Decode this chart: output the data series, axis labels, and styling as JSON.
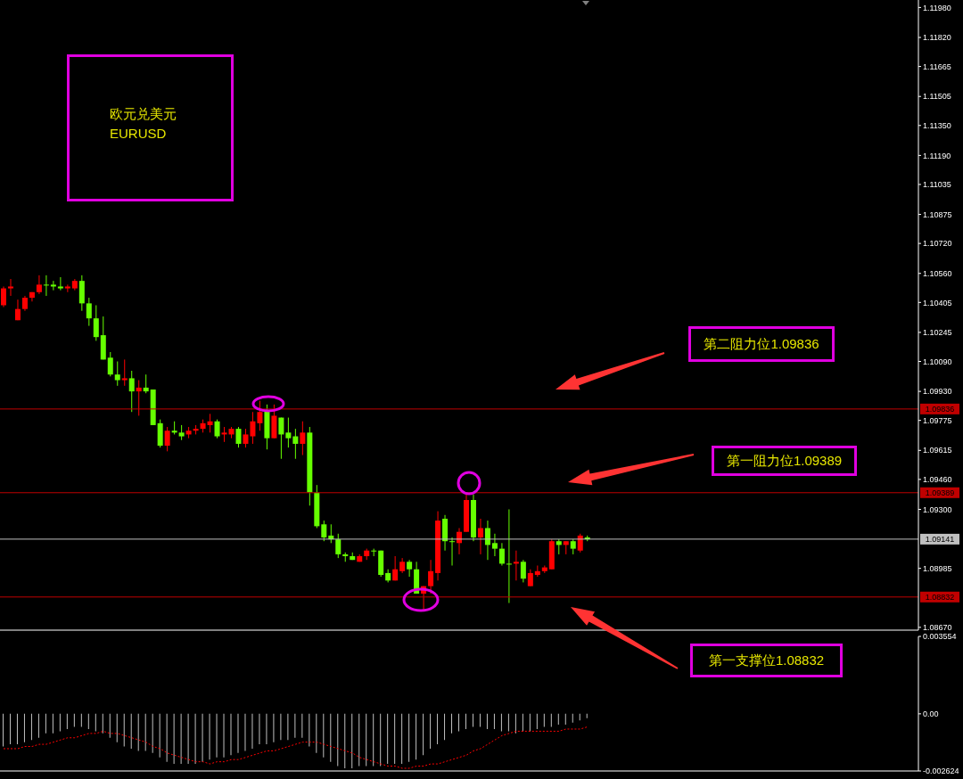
{
  "chart_data": [
    {
      "type": "candlestick",
      "categories": [
        null,
        null,
        null,
        null,
        null,
        null,
        null,
        null,
        null,
        null,
        null,
        null,
        null,
        null,
        null,
        null,
        null,
        null,
        null,
        null,
        null,
        null,
        null,
        null,
        null,
        null,
        null,
        null,
        null,
        null,
        null,
        null,
        null,
        null,
        null,
        null,
        null,
        null,
        null,
        null,
        null,
        null,
        null,
        null,
        null,
        null,
        null,
        null,
        null,
        null,
        null,
        null,
        null,
        null,
        null,
        null,
        null,
        null,
        null,
        null,
        null,
        null,
        null,
        null,
        null,
        null,
        null,
        null,
        null,
        null,
        null,
        null,
        null,
        null,
        null,
        null,
        null,
        null,
        null,
        null,
        null,
        null,
        null,
        null,
        null,
        null,
        null,
        null,
        null,
        null,
        null,
        null,
        null,
        null,
        null,
        null,
        null,
        null,
        null,
        null,
        null,
        null,
        null,
        null,
        null,
        null,
        null,
        null,
        null,
        null,
        null,
        null,
        null,
        null,
        null,
        null,
        null,
        null,
        null,
        null,
        null,
        null,
        null,
        null,
        null,
        null,
        null,
        null,
        null
      ],
      "ohlc": [
        [
          1.1039,
          1.1049,
          1.1038,
          1.1048
        ],
        [
          1.1048,
          1.1053,
          1.1044,
          1.1049
        ],
        [
          1.1031,
          1.1042,
          1.1031,
          1.1037
        ],
        [
          1.1037,
          1.1044,
          1.1036,
          1.1043
        ],
        [
          1.1043,
          1.1046,
          1.1041,
          1.1046
        ],
        [
          1.1046,
          1.1055,
          1.1045,
          1.105
        ],
        [
          1.105,
          1.1055,
          1.1044,
          1.105
        ],
        [
          1.105,
          1.1052,
          1.1047,
          1.1049
        ],
        [
          1.1049,
          1.1054,
          1.1047,
          1.1048
        ],
        [
          1.1048,
          1.105,
          1.1046,
          1.1049
        ],
        [
          1.1048,
          1.1053,
          1.1047,
          1.1052
        ],
        [
          1.1052,
          1.1055,
          1.1036,
          1.104
        ],
        [
          1.104,
          1.1043,
          1.1028,
          1.1032
        ],
        [
          1.1032,
          1.1039,
          1.102,
          1.1022
        ],
        [
          1.1023,
          1.1033,
          1.101,
          1.101
        ],
        [
          1.1011,
          1.1014,
          1.1001,
          1.1002
        ],
        [
          1.1002,
          1.1009,
          1.0996,
          1.0999
        ],
        [
          1.0999,
          1.101,
          1.0996,
          1.1
        ],
        [
          1.1,
          1.1004,
          1.0982,
          1.0993
        ],
        [
          1.0993,
          1.0999,
          1.098,
          1.0995
        ],
        [
          1.0995,
          1.1002,
          1.0992,
          1.0993
        ],
        [
          1.0994,
          1.0994,
          1.0975,
          1.0975
        ],
        [
          1.0976,
          1.0978,
          1.0963,
          1.0964
        ],
        [
          1.0964,
          1.0974,
          1.0961,
          1.0972
        ],
        [
          1.0972,
          1.0977,
          1.097,
          1.0971
        ],
        [
          1.0971,
          1.0975,
          1.0967,
          1.0969
        ],
        [
          1.097,
          1.0974,
          1.0968,
          1.0972
        ],
        [
          1.0972,
          1.0975,
          1.097,
          1.0973
        ],
        [
          1.0973,
          1.0978,
          1.0971,
          1.0976
        ],
        [
          1.0975,
          1.0981,
          1.0971,
          1.0977
        ],
        [
          1.0977,
          1.0978,
          1.0968,
          1.0969
        ],
        [
          1.097,
          1.0974,
          1.0966,
          1.0971
        ],
        [
          1.097,
          1.0974,
          1.0968,
          1.0973
        ],
        [
          1.0973,
          1.0974,
          1.0963,
          1.0965
        ],
        [
          1.0965,
          1.0973,
          1.0963,
          1.097
        ],
        [
          1.0969,
          1.0982,
          1.0965,
          1.0977
        ],
        [
          1.0976,
          1.0988,
          1.0972,
          1.0982
        ],
        [
          1.0983,
          1.0986,
          1.0962,
          1.0968
        ],
        [
          1.0968,
          1.0986,
          1.0968,
          1.098
        ],
        [
          1.0979,
          1.0979,
          1.0957,
          1.097
        ],
        [
          1.0971,
          1.0979,
          1.0963,
          1.0968
        ],
        [
          1.0969,
          1.0973,
          1.0957,
          1.0965
        ],
        [
          1.0965,
          1.0977,
          1.0959,
          1.0971
        ],
        [
          1.0971,
          1.0974,
          1.0932,
          1.0939
        ],
        [
          1.0939,
          1.0943,
          1.092,
          1.0921
        ],
        [
          1.0922,
          1.0924,
          1.0913,
          1.0915
        ],
        [
          1.0916,
          1.0922,
          1.0912,
          1.0914
        ],
        [
          1.0914,
          1.0917,
          1.0904,
          1.0906
        ],
        [
          1.0906,
          1.0907,
          1.0902,
          1.0905
        ],
        [
          1.0905,
          1.0907,
          1.0903,
          1.0903
        ],
        [
          1.0902,
          1.0906,
          1.0902,
          1.0905
        ],
        [
          1.0905,
          1.0909,
          1.0903,
          1.0908
        ],
        [
          1.0908,
          1.0909,
          1.0905,
          1.0908
        ],
        [
          1.0908,
          1.0908,
          1.0894,
          1.0895
        ],
        [
          1.0896,
          1.0898,
          1.0891,
          1.0892
        ],
        [
          1.0892,
          1.0905,
          1.0892,
          1.0898
        ],
        [
          1.0897,
          1.0904,
          1.0896,
          1.0902
        ],
        [
          1.0902,
          1.0903,
          1.0894,
          1.0898
        ],
        [
          1.0898,
          1.0902,
          1.0885,
          1.0885
        ],
        [
          1.0885,
          1.0889,
          1.0876,
          1.0889
        ],
        [
          1.0889,
          1.0903,
          1.0885,
          1.0897
        ],
        [
          1.0896,
          1.0929,
          1.0892,
          1.0924
        ],
        [
          1.0925,
          1.0927,
          1.0908,
          1.0913
        ],
        [
          1.0913,
          1.0915,
          1.09,
          1.0913
        ],
        [
          1.0912,
          1.092,
          1.0906,
          1.0918
        ],
        [
          1.0918,
          1.0939,
          1.0918,
          1.0935
        ],
        [
          1.0935,
          1.0938,
          1.0913,
          1.0915
        ],
        [
          1.0915,
          1.0925,
          1.0906,
          1.092
        ],
        [
          1.092,
          1.0924,
          1.0903,
          1.0911
        ],
        [
          1.0912,
          1.0917,
          1.0905,
          1.0909
        ],
        [
          1.0909,
          1.0912,
          1.09,
          1.0901
        ],
        [
          1.0901,
          1.093,
          1.088,
          1.0901
        ],
        [
          1.0901,
          1.0908,
          1.0892,
          1.0902
        ],
        [
          1.0902,
          1.0903,
          1.0891,
          1.0893
        ],
        [
          1.0889,
          1.0898,
          1.0889,
          1.0896
        ],
        [
          1.0895,
          1.09,
          1.0894,
          1.0897
        ],
        [
          1.0897,
          1.09,
          1.0896,
          1.0899
        ],
        [
          1.0898,
          1.0914,
          1.0898,
          1.0913
        ],
        [
          1.0913,
          1.0914,
          1.0906,
          1.0911
        ],
        [
          1.0911,
          1.0913,
          1.0906,
          1.0913
        ],
        [
          1.0913,
          1.0914,
          1.0906,
          1.0909
        ],
        [
          1.0908,
          1.0917,
          1.0907,
          1.0916
        ],
        [
          1.0915,
          1.0916,
          1.0913,
          1.0914
        ],
        null,
        null,
        null,
        null,
        null,
        null,
        null,
        null,
        null,
        null,
        null,
        null,
        null,
        null,
        null,
        null,
        null,
        null,
        null,
        null,
        null,
        null,
        null,
        null,
        null,
        null,
        null,
        null,
        null,
        null,
        null,
        null,
        null,
        null,
        null,
        null,
        null,
        null,
        null,
        null,
        null,
        null,
        null,
        null,
        null,
        null
      ],
      "colors": [
        "#ff0000",
        "#ff0000",
        "#ff0000",
        "#ff0000",
        "#ff0000",
        "#ff0000",
        "#66ff00",
        "#66ff00",
        "#66ff00",
        "#ff0000",
        "#ff0000",
        "#66ff00",
        "#66ff00",
        "#66ff00",
        "#66ff00",
        "#66ff00",
        "#66ff00",
        "#ff0000",
        "#66ff00",
        "#ff0000",
        "#66ff00",
        "#66ff00",
        "#66ff00",
        "#ff0000",
        "#66ff00",
        "#66ff00",
        "#ff0000",
        "#ff0000",
        "#ff0000",
        "#ff0000",
        "#66ff00",
        "#ff0000",
        "#ff0000",
        "#66ff00",
        "#ff0000",
        "#ff0000",
        "#ff0000",
        "#66ff00",
        "#ff0000",
        "#66ff00",
        "#66ff00",
        "#66ff00",
        "#ff0000",
        "#66ff00",
        "#66ff00",
        "#66ff00",
        "#66ff00",
        "#66ff00",
        "#66ff00",
        "#66ff00",
        "#ff0000",
        "#ff0000",
        "#66ff00",
        "#66ff00",
        "#66ff00",
        "#ff0000",
        "#ff0000",
        "#66ff00",
        "#66ff00",
        "#ff0000",
        "#ff0000",
        "#ff0000",
        "#66ff00",
        "#66ff00",
        "#ff0000",
        "#ff0000",
        "#66ff00",
        "#ff0000",
        "#66ff00",
        "#66ff00",
        "#66ff00",
        "#66ff00",
        "#ff0000",
        "#66ff00",
        "#ff0000",
        "#ff0000",
        "#ff0000",
        "#ff0000",
        "#66ff00",
        "#ff0000",
        "#66ff00",
        "#ff0000",
        "#66ff00",
        null,
        null,
        null,
        null,
        null,
        null,
        null,
        null,
        null,
        null,
        null,
        null,
        null,
        null,
        null,
        null,
        null,
        null,
        null,
        null,
        null,
        null,
        null,
        null,
        null,
        null,
        null,
        null,
        null,
        null,
        null,
        null,
        null,
        null,
        null,
        null,
        null,
        null,
        null,
        null,
        null,
        null,
        null,
        null,
        null,
        null
      ],
      "ylim": [
        1.08655,
        1.1202
      ],
      "yticks": [
        {
          "value": 1.0867,
          "label": "1.08670"
        },
        1.08985,
        {
          "value": 1.093,
          "label": "1.09300"
        },
        {
          "value": 1.0946,
          "label": "1.09460"
        },
        1.09615,
        1.09775,
        {
          "value": 1.0993,
          "label": "1.09930"
        },
        {
          "value": 1.1009,
          "label": "1.10090"
        },
        1.10245,
        1.10405,
        {
          "value": 1.1056,
          "label": "1.10560"
        },
        {
          "value": 1.1072,
          "label": "1.10720"
        },
        1.10875,
        1.11035,
        {
          "value": 1.1119,
          "label": "1.11190"
        },
        {
          "value": 1.1135,
          "label": "1.11350"
        },
        1.11505,
        1.11665,
        {
          "value": 1.1182,
          "label": "1.11820"
        },
        {
          "value": 1.1198,
          "label": "1.11980"
        }
      ],
      "tick_labels": "y",
      "ref_lines": [
        {
          "axis": "y",
          "value": 1.09836,
          "label": "1.09836",
          "color": "#c00000"
        },
        {
          "axis": "y",
          "value": 1.09389,
          "label": "1.09389",
          "color": "#c00000"
        },
        {
          "axis": "y",
          "value": 1.09141,
          "label": "1.09141",
          "color": "#c0c0c0"
        },
        {
          "axis": "y",
          "value": 1.08832,
          "label": "1.08832",
          "color": "#c00000"
        }
      ],
      "annotations": [
        "欧元兑美元",
        "EURUSD",
        "第二阻力位1.09836",
        "第一阻力位1.09389",
        "第一支撑位1.08832"
      ]
    },
    {
      "type": "bar",
      "categories": [
        null,
        null,
        null,
        null,
        null,
        null,
        null,
        null,
        null,
        null,
        null,
        null,
        null,
        null,
        null,
        null,
        null,
        null,
        null,
        null,
        null,
        null,
        null,
        null,
        null,
        null,
        null,
        null,
        null,
        null,
        null,
        null,
        null,
        null,
        null,
        null,
        null,
        null,
        null,
        null,
        null,
        null,
        null,
        null,
        null,
        null,
        null,
        null,
        null,
        null,
        null,
        null,
        null,
        null,
        null,
        null,
        null,
        null,
        null,
        null,
        null,
        null,
        null,
        null,
        null,
        null,
        null,
        null,
        null,
        null,
        null,
        null,
        null,
        null,
        null,
        null,
        null,
        null,
        null,
        null,
        null,
        null,
        null,
        null,
        null,
        null,
        null,
        null,
        null,
        null,
        null,
        null,
        null,
        null,
        null,
        null,
        null,
        null,
        null,
        null,
        null,
        null,
        null,
        null,
        null,
        null,
        null,
        null,
        null,
        null,
        null,
        null,
        null,
        null,
        null,
        null,
        null,
        null,
        null,
        null,
        null,
        null,
        null,
        null,
        null,
        null,
        null,
        null,
        null
      ],
      "series": [
        {
          "type": "bar",
          "color": "#c0c0c0",
          "values": [
            -0.0015,
            -0.0014,
            -0.0014,
            -0.0013,
            -0.0012,
            -0.0011,
            -0.0009,
            -0.0009,
            -0.0008,
            -0.0007,
            -0.0006,
            -0.0006,
            -0.0007,
            -0.0008,
            -0.0009,
            -0.0011,
            -0.0013,
            -0.0015,
            -0.0016,
            -0.0017,
            -0.0017,
            -0.0018,
            -0.002,
            -0.0022,
            -0.0023,
            -0.0023,
            -0.0023,
            -0.0023,
            -0.0022,
            -0.0021,
            -0.002,
            -0.002,
            -0.0019,
            -0.0018,
            -0.0017,
            -0.0016,
            -0.0014,
            -0.0014,
            -0.0013,
            -0.0012,
            -0.0012,
            -0.0011,
            -0.0011,
            -0.0015,
            -0.0018,
            -0.002,
            -0.0022,
            -0.0024,
            -0.0025,
            -0.0025,
            -0.0024,
            -0.0024,
            -0.0024,
            -0.0024,
            -0.0023,
            -0.0023,
            -0.0023,
            -0.0022,
            -0.0021,
            -0.0019,
            -0.0016,
            -0.0014,
            -0.0012,
            -0.0009,
            -0.0008,
            -0.0007,
            -0.0006,
            -0.0006,
            -0.0007,
            -0.0007,
            -0.0008,
            -0.0008,
            -0.0009,
            -0.0008,
            -0.0008,
            -0.0007,
            -0.0006,
            -0.0006,
            -0.0005,
            -0.0005,
            -0.0004,
            -0.0003,
            -0.0002,
            null,
            null,
            null,
            null,
            null,
            null,
            null,
            null,
            null,
            null,
            null,
            null,
            null,
            null,
            null,
            null,
            null,
            null,
            null,
            null,
            null,
            null,
            null,
            null,
            null,
            null,
            null,
            null,
            null,
            null,
            null,
            null,
            null,
            null,
            null,
            null,
            null,
            null,
            null,
            null,
            null,
            null,
            null,
            null,
            null,
            null
          ]
        },
        {
          "type": "line",
          "color": "#ff0000",
          "line_style": "dotted",
          "values": [
            -0.0016,
            -0.0016,
            -0.0016,
            -0.0015,
            -0.0015,
            -0.0014,
            -0.0014,
            -0.0013,
            -0.0012,
            -0.0011,
            -0.0011,
            -0.001,
            -0.0009,
            -0.0009,
            -0.0008,
            -0.0009,
            -0.0009,
            -0.001,
            -0.0011,
            -0.0012,
            -0.0013,
            -0.0015,
            -0.0016,
            -0.0018,
            -0.0019,
            -0.002,
            -0.0021,
            -0.0022,
            -0.0022,
            -0.0023,
            -0.0022,
            -0.0022,
            -0.0021,
            -0.0021,
            -0.002,
            -0.0019,
            -0.0018,
            -0.0017,
            -0.0017,
            -0.0016,
            -0.0015,
            -0.0014,
            -0.0013,
            -0.0013,
            -0.0013,
            -0.0014,
            -0.0015,
            -0.0016,
            -0.0017,
            -0.0018,
            -0.002,
            -0.0021,
            -0.0022,
            -0.0023,
            -0.0024,
            -0.0024,
            -0.0025,
            -0.0025,
            -0.0024,
            -0.0024,
            -0.0023,
            -0.0023,
            -0.0022,
            -0.0021,
            -0.002,
            -0.0019,
            -0.0017,
            -0.0016,
            -0.0014,
            -0.0012,
            -0.001,
            -0.0009,
            -0.0008,
            -0.0008,
            -0.0008,
            -0.0008,
            -0.0008,
            -0.0008,
            -0.0008,
            -0.0007,
            -0.0007,
            -0.0007,
            -0.0006,
            null,
            null,
            null,
            null,
            null,
            null,
            null,
            null,
            null,
            null,
            null,
            null,
            null,
            null,
            null,
            null,
            null,
            null,
            null,
            null,
            null,
            null,
            null,
            null,
            null,
            null,
            null,
            null,
            null,
            null,
            null,
            null,
            null,
            null,
            null,
            null,
            null,
            null,
            null,
            null,
            null,
            null,
            null,
            null,
            null,
            null
          ]
        }
      ],
      "ylim": [
        -0.002624,
        0.003554
      ],
      "yticks": [
        -0.002624,
        {
          "value": 0,
          "label": "0.00"
        },
        0.003554
      ],
      "tick_labels": "y"
    }
  ]
}
